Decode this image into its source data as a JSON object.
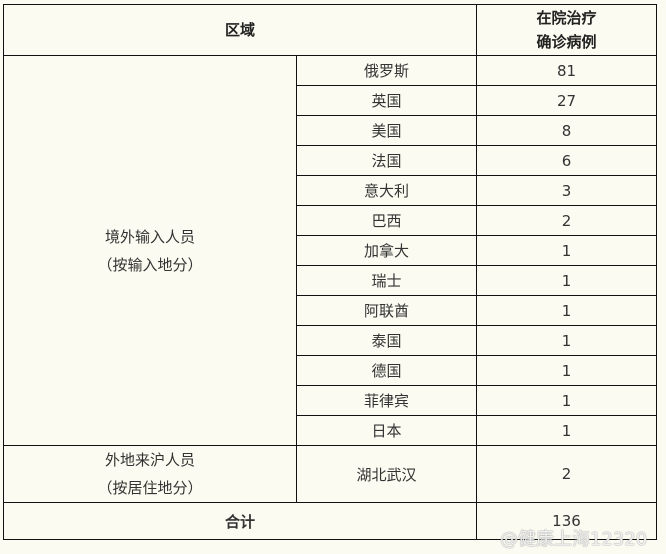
{
  "header": {
    "region": "区域",
    "cases_line1": "在院治疗",
    "cases_line2": "确诊病例"
  },
  "groups": [
    {
      "label_line1": "境外输入人员",
      "label_line2": "（按输入地分）",
      "rows": [
        {
          "place": "俄罗斯",
          "count": "81"
        },
        {
          "place": "英国",
          "count": "27"
        },
        {
          "place": "美国",
          "count": "8"
        },
        {
          "place": "法国",
          "count": "6"
        },
        {
          "place": "意大利",
          "count": "3"
        },
        {
          "place": "巴西",
          "count": "2"
        },
        {
          "place": "加拿大",
          "count": "1"
        },
        {
          "place": "瑞士",
          "count": "1"
        },
        {
          "place": "阿联酋",
          "count": "1"
        },
        {
          "place": "泰国",
          "count": "1"
        },
        {
          "place": "德国",
          "count": "1"
        },
        {
          "place": "菲律宾",
          "count": "1"
        },
        {
          "place": "日本",
          "count": "1"
        }
      ]
    },
    {
      "label_line1": "外地来沪人员",
      "label_line2": "（按居住地分）",
      "rows": [
        {
          "place": "湖北武汉",
          "count": "2"
        }
      ]
    }
  ],
  "total": {
    "label": "合计",
    "count": "136"
  },
  "watermark": "@健康上海12320"
}
